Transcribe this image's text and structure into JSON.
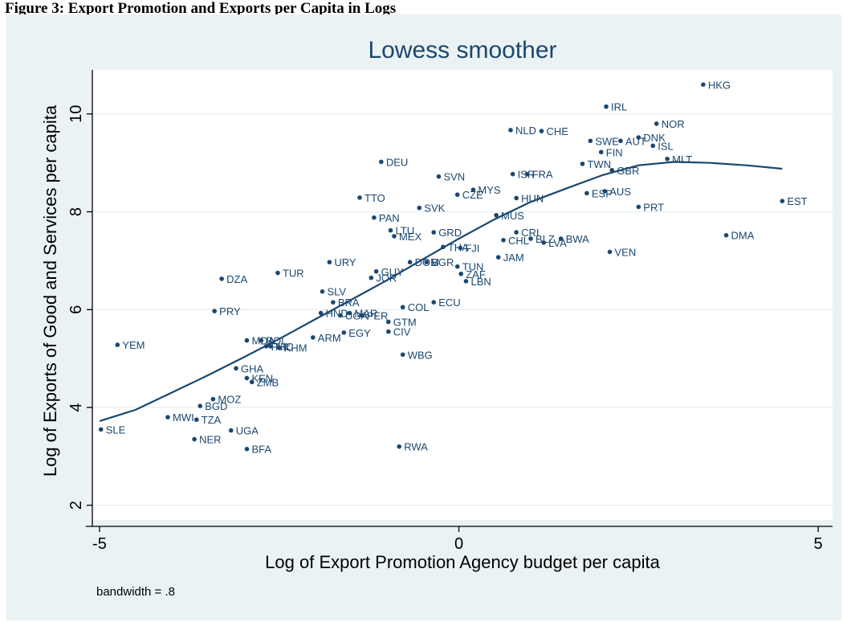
{
  "heading": "Figure 3: Export Promotion and Exports per Capita in Logs",
  "colors": {
    "background": "#eaf2f3",
    "plot": "#ffffff",
    "marker": "#1a476f",
    "grid": "#eaf2f3"
  },
  "chart_data": {
    "type": "scatter",
    "title": "Lowess smoother",
    "xlabel": "Log of Export Promotion Agency budget per capita",
    "ylabel": "Log of Exports of Good and Services per capita",
    "note": "bandwidth = .8",
    "xlim": [
      -5.1,
      5.2
    ],
    "ylim": [
      1.7,
      10.9
    ],
    "xticks": [
      -5,
      0,
      5
    ],
    "yticks": [
      2,
      4,
      6,
      8,
      10
    ],
    "grid": true,
    "legend": "none",
    "points": [
      {
        "label": "HKG",
        "x": 3.4,
        "y": 10.6
      },
      {
        "label": "IRL",
        "x": 2.05,
        "y": 10.15
      },
      {
        "label": "NOR",
        "x": 2.75,
        "y": 9.8
      },
      {
        "label": "NLD",
        "x": 0.72,
        "y": 9.67
      },
      {
        "label": "CHE",
        "x": 1.15,
        "y": 9.65
      },
      {
        "label": "DNK",
        "x": 2.5,
        "y": 9.52
      },
      {
        "label": "SWE",
        "x": 1.83,
        "y": 9.45
      },
      {
        "label": "AUT",
        "x": 2.25,
        "y": 9.45
      },
      {
        "label": "ISL",
        "x": 2.7,
        "y": 9.35
      },
      {
        "label": "FIN",
        "x": 1.98,
        "y": 9.22
      },
      {
        "label": "MLT",
        "x": 2.9,
        "y": 9.08
      },
      {
        "label": "DEU",
        "x": -1.08,
        "y": 9.02
      },
      {
        "label": "TWN",
        "x": 1.72,
        "y": 8.98
      },
      {
        "label": "GBR",
        "x": 2.13,
        "y": 8.85
      },
      {
        "label": "SVN",
        "x": -0.28,
        "y": 8.72
      },
      {
        "label": "ISR",
        "x": 0.75,
        "y": 8.77
      },
      {
        "label": "FRA",
        "x": 0.95,
        "y": 8.77
      },
      {
        "label": "MYS",
        "x": 0.2,
        "y": 8.45
      },
      {
        "label": "CZE",
        "x": -0.02,
        "y": 8.35
      },
      {
        "label": "ESP",
        "x": 1.78,
        "y": 8.38
      },
      {
        "label": "AUS",
        "x": 2.03,
        "y": 8.42
      },
      {
        "label": "TTO",
        "x": -1.38,
        "y": 8.29
      },
      {
        "label": "HUN",
        "x": 0.8,
        "y": 8.28
      },
      {
        "label": "SVK",
        "x": -0.55,
        "y": 8.08
      },
      {
        "label": "PRT",
        "x": 2.5,
        "y": 8.1
      },
      {
        "label": "EST",
        "x": 4.5,
        "y": 8.22
      },
      {
        "label": "PAN",
        "x": -1.18,
        "y": 7.88
      },
      {
        "label": "MUS",
        "x": 0.52,
        "y": 7.93
      },
      {
        "label": "LTU",
        "x": -0.95,
        "y": 7.62
      },
      {
        "label": "GRD",
        "x": -0.35,
        "y": 7.58
      },
      {
        "label": "CRI",
        "x": 0.8,
        "y": 7.58
      },
      {
        "label": "BLZ",
        "x": 1.0,
        "y": 7.45
      },
      {
        "label": "MEX",
        "x": -0.9,
        "y": 7.5
      },
      {
        "label": "BWA",
        "x": 1.42,
        "y": 7.45
      },
      {
        "label": "CHL",
        "x": 0.62,
        "y": 7.42
      },
      {
        "label": "LVA",
        "x": 1.18,
        "y": 7.37
      },
      {
        "label": "DMA",
        "x": 3.72,
        "y": 7.52
      },
      {
        "label": "THA",
        "x": -0.22,
        "y": 7.28
      },
      {
        "label": "FJI",
        "x": 0.02,
        "y": 7.26
      },
      {
        "label": "VEN",
        "x": 2.1,
        "y": 7.18
      },
      {
        "label": "JAM",
        "x": 0.55,
        "y": 7.07
      },
      {
        "label": "URY",
        "x": -1.8,
        "y": 6.97
      },
      {
        "label": "DOM",
        "x": -0.68,
        "y": 6.97
      },
      {
        "label": "BGR",
        "x": -0.45,
        "y": 6.97
      },
      {
        "label": "TUN",
        "x": -0.02,
        "y": 6.88
      },
      {
        "label": "TUR",
        "x": -2.52,
        "y": 6.75
      },
      {
        "label": "GUY",
        "x": -1.15,
        "y": 6.78
      },
      {
        "label": "ZAF",
        "x": 0.03,
        "y": 6.73
      },
      {
        "label": "JOR",
        "x": -1.22,
        "y": 6.65
      },
      {
        "label": "DZA",
        "x": -3.3,
        "y": 6.63
      },
      {
        "label": "LBN",
        "x": 0.1,
        "y": 6.58
      },
      {
        "label": "SLV",
        "x": -1.9,
        "y": 6.37
      },
      {
        "label": "BRA",
        "x": -1.75,
        "y": 6.15
      },
      {
        "label": "ECU",
        "x": -0.35,
        "y": 6.15
      },
      {
        "label": "COL",
        "x": -0.78,
        "y": 6.05
      },
      {
        "label": "PRY",
        "x": -3.4,
        "y": 5.97
      },
      {
        "label": "HND",
        "x": -1.92,
        "y": 5.93
      },
      {
        "label": "MAR",
        "x": -1.52,
        "y": 5.93
      },
      {
        "label": "UGA",
        "x": -1.65,
        "y": 5.88
      },
      {
        "label": "PER",
        "x": -1.35,
        "y": 5.88
      },
      {
        "label": "GTM",
        "x": -0.98,
        "y": 5.75
      },
      {
        "label": "CIV",
        "x": -0.98,
        "y": 5.55
      },
      {
        "label": "EGY",
        "x": -1.6,
        "y": 5.53
      },
      {
        "label": "ARM",
        "x": -2.03,
        "y": 5.43
      },
      {
        "label": "MDA",
        "x": -2.95,
        "y": 5.37
      },
      {
        "label": "BOL",
        "x": -2.75,
        "y": 5.37
      },
      {
        "label": "PHL",
        "x": -2.68,
        "y": 5.25
      },
      {
        "label": "NIC",
        "x": -2.62,
        "y": 5.25
      },
      {
        "label": "KHM",
        "x": -2.5,
        "y": 5.22
      },
      {
        "label": "YEM",
        "x": -4.75,
        "y": 5.28
      },
      {
        "label": "WBG",
        "x": -0.78,
        "y": 5.08
      },
      {
        "label": "GHA",
        "x": -3.1,
        "y": 4.8
      },
      {
        "label": "KEN",
        "x": -2.95,
        "y": 4.6
      },
      {
        "label": "ZMB",
        "x": -2.88,
        "y": 4.52
      },
      {
        "label": "MOZ",
        "x": -3.42,
        "y": 4.17
      },
      {
        "label": "BGD",
        "x": -3.6,
        "y": 4.03
      },
      {
        "label": "MWI",
        "x": -4.05,
        "y": 3.8
      },
      {
        "label": "TZA",
        "x": -3.65,
        "y": 3.75
      },
      {
        "label": "SLE",
        "x": -4.98,
        "y": 3.55
      },
      {
        "label": "UGA",
        "x": -3.17,
        "y": 3.53
      },
      {
        "label": "NER",
        "x": -3.68,
        "y": 3.35
      },
      {
        "label": "BFA",
        "x": -2.95,
        "y": 3.15
      },
      {
        "label": "RWA",
        "x": -0.83,
        "y": 3.2
      }
    ],
    "series": [
      {
        "type": "line",
        "x": [
          -5.0,
          -4.5,
          -4.0,
          -3.5,
          -3.0,
          -2.5,
          -2.0,
          -1.5,
          -1.0,
          -0.5,
          0.0,
          0.5,
          1.0,
          1.5,
          2.0,
          2.5,
          3.0,
          3.5,
          4.0,
          4.5
        ],
        "y": [
          3.72,
          3.95,
          4.3,
          4.65,
          5.02,
          5.4,
          5.8,
          6.2,
          6.6,
          7.03,
          7.45,
          7.85,
          8.2,
          8.48,
          8.75,
          8.95,
          9.02,
          9.0,
          8.95,
          8.88
        ]
      }
    ]
  }
}
